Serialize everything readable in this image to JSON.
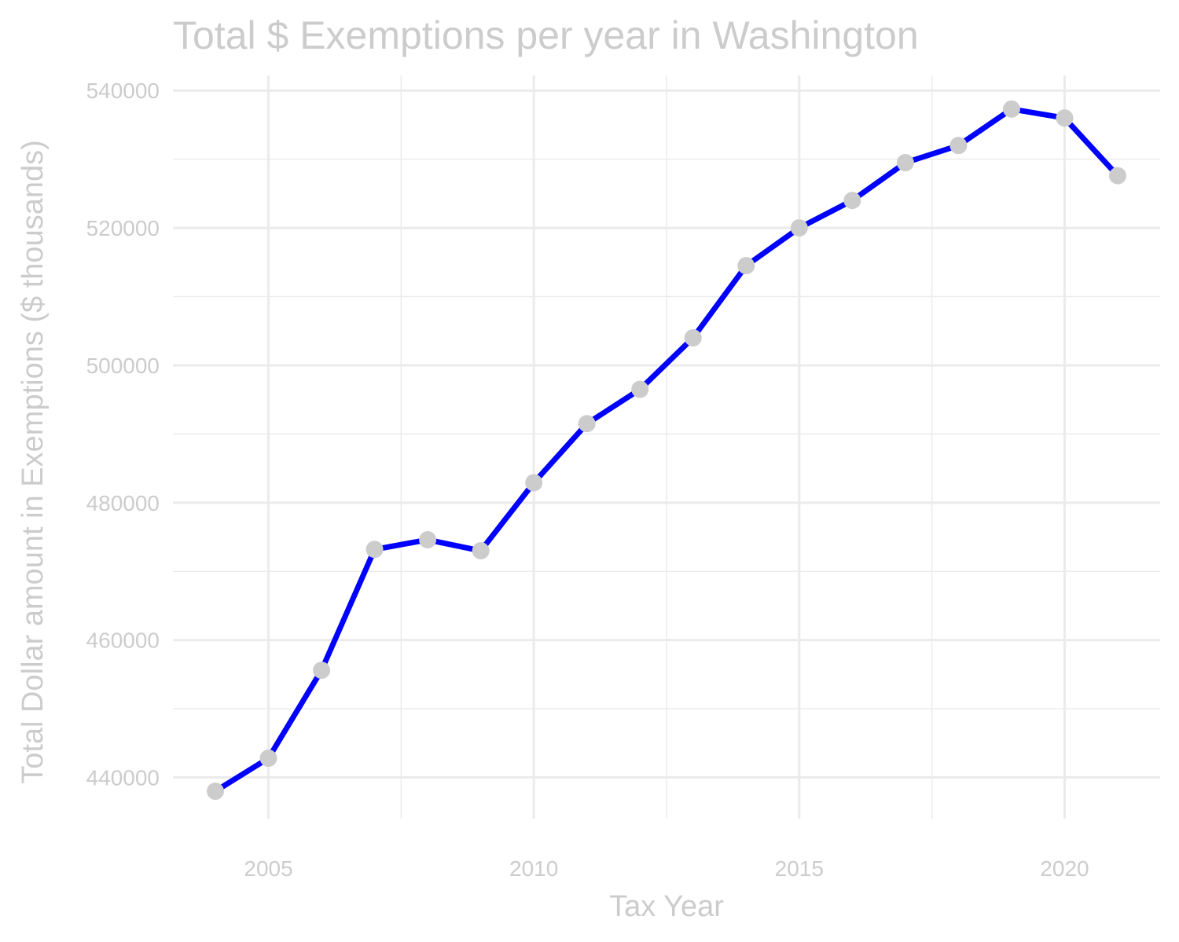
{
  "chart_data": {
    "type": "line",
    "title": "Total $ Exemptions per year in Washington",
    "xlabel": "Tax Year",
    "ylabel": "Total Dollar amount in Exemptions ($ thousands)",
    "xlim": [
      2003.2,
      2021.8
    ],
    "ylim": [
      434000,
      542200
    ],
    "x_ticks": [
      2005,
      2010,
      2015,
      2020
    ],
    "x_tick_labels": [
      "2005",
      "2010",
      "2015",
      "2020"
    ],
    "x_minor_ticks": [
      2007.5,
      2012.5,
      2017.5
    ],
    "y_ticks": [
      440000,
      460000,
      480000,
      500000,
      520000,
      540000
    ],
    "y_tick_labels": [
      "440000",
      "460000",
      "480000",
      "500000",
      "520000",
      "540000"
    ],
    "y_minor_ticks": [
      450000,
      470000,
      490000,
      510000,
      530000
    ],
    "grid": true,
    "line_color": "#0000ff",
    "point_color": "#cccccc",
    "text_color": "#cccccc",
    "grid_color": "#ebebeb",
    "series": [
      {
        "x": [
          2004,
          2005,
          2006,
          2007,
          2008,
          2009,
          2010,
          2011,
          2012,
          2013,
          2014,
          2015,
          2016,
          2017,
          2018,
          2019,
          2020,
          2021
        ],
        "values": [
          438000,
          442800,
          455600,
          473200,
          474600,
          473000,
          482900,
          491500,
          496500,
          504000,
          514500,
          520000,
          524000,
          529500,
          532000,
          537300,
          536000,
          527600
        ]
      }
    ]
  }
}
